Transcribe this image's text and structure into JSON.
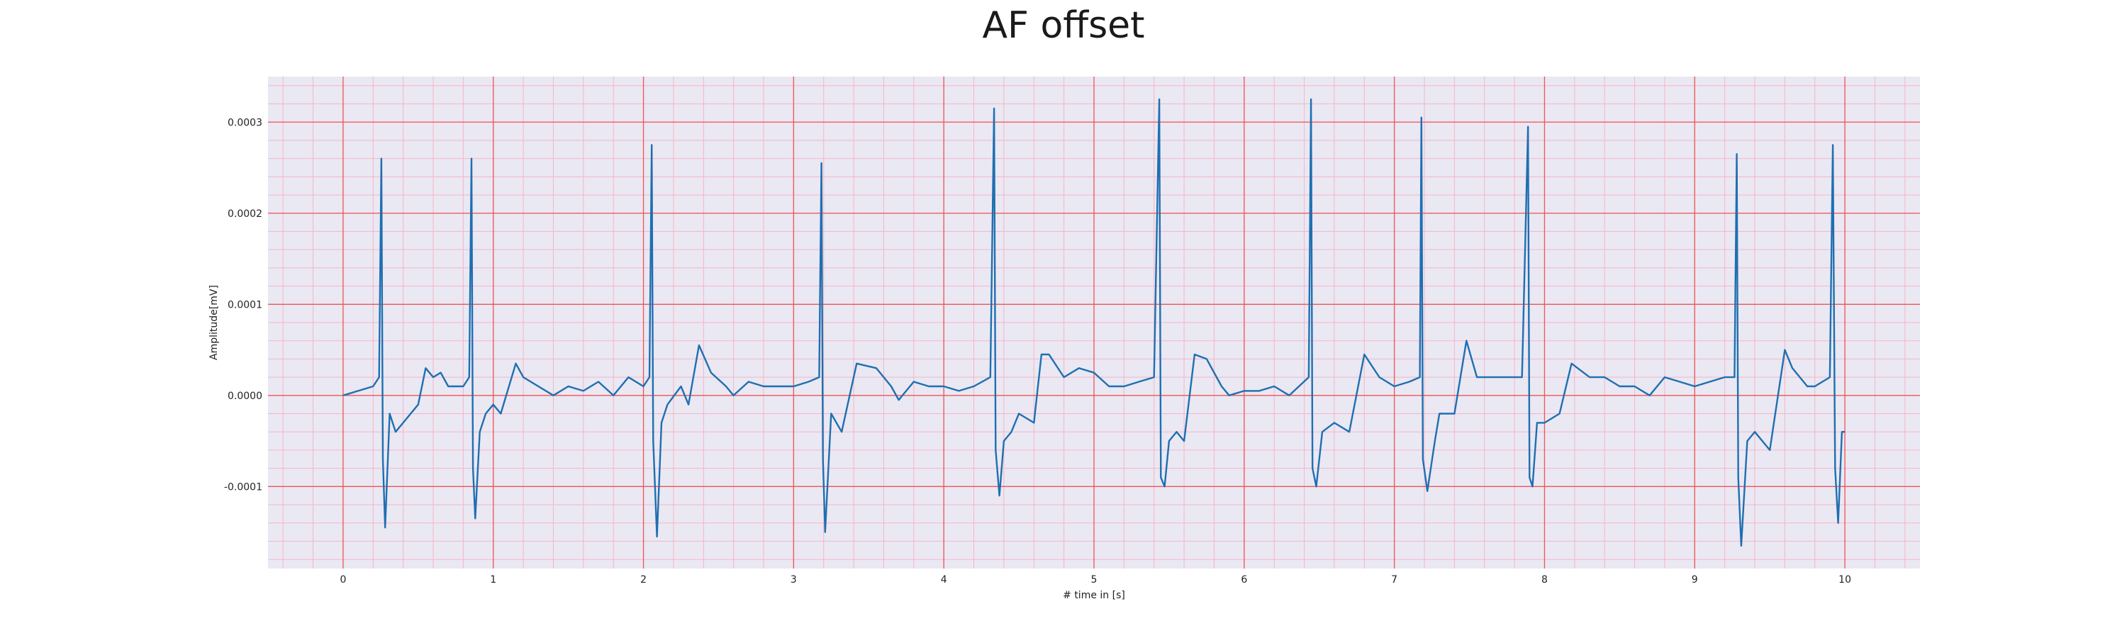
{
  "chart_data": {
    "type": "line",
    "title": "AF offset",
    "xlabel": "# time in [s]",
    "ylabel": "Amplitude[mV]",
    "xlim": [
      -0.5,
      10.5
    ],
    "ylim": [
      -0.00019,
      0.00035
    ],
    "x_ticks": [
      0,
      1,
      2,
      3,
      4,
      5,
      6,
      7,
      8,
      9,
      10
    ],
    "x_tick_labels": [
      "0",
      "1",
      "2",
      "3",
      "4",
      "5",
      "6",
      "7",
      "8",
      "9",
      "10"
    ],
    "y_ticks": [
      -0.0001,
      0.0,
      0.0001,
      0.0002,
      0.0003
    ],
    "y_tick_labels": [
      "-0.0001",
      "0.0000",
      "0.0001",
      "0.0002",
      "0.0003"
    ],
    "grid": true,
    "colors": {
      "line": "#1f6fb0",
      "plot_background": "#eae8f3",
      "major_grid": "#ee5555",
      "minor_grid": "#f4b6c6"
    },
    "series": [
      {
        "values": [
          [
            0,
            0
          ],
          [
            0.1,
            5e-06
          ],
          [
            0.2,
            1e-05
          ],
          [
            0.24,
            2e-05
          ],
          [
            0.255,
            0.00026
          ],
          [
            0.265,
            -7e-05
          ],
          [
            0.28,
            -0.000145
          ],
          [
            0.31,
            -2e-05
          ],
          [
            0.35,
            -4e-05
          ],
          [
            0.4,
            -3e-05
          ],
          [
            0.5,
            -1e-05
          ],
          [
            0.55,
            3e-05
          ],
          [
            0.6,
            2e-05
          ],
          [
            0.65,
            2.5e-05
          ],
          [
            0.7,
            1e-05
          ],
          [
            0.8,
            1e-05
          ],
          [
            0.84,
            2e-05
          ],
          [
            0.855,
            0.00026
          ],
          [
            0.865,
            -8e-05
          ],
          [
            0.88,
            -0.000135
          ],
          [
            0.91,
            -4e-05
          ],
          [
            0.95,
            -2e-05
          ],
          [
            1.0,
            -1e-05
          ],
          [
            1.05,
            -2e-05
          ],
          [
            1.15,
            3.5e-05
          ],
          [
            1.2,
            2e-05
          ],
          [
            1.3,
            1e-05
          ],
          [
            1.4,
            0.0
          ],
          [
            1.5,
            1e-05
          ],
          [
            1.6,
            5e-06
          ],
          [
            1.7,
            1.5e-05
          ],
          [
            1.8,
            0.0
          ],
          [
            1.9,
            2e-05
          ],
          [
            2.0,
            1e-05
          ],
          [
            2.04,
            2e-05
          ],
          [
            2.055,
            0.000275
          ],
          [
            2.065,
            -5e-05
          ],
          [
            2.09,
            -0.000155
          ],
          [
            2.12,
            -3e-05
          ],
          [
            2.16,
            -1e-05
          ],
          [
            2.25,
            1e-05
          ],
          [
            2.3,
            -1e-05
          ],
          [
            2.37,
            5.5e-05
          ],
          [
            2.45,
            2.5e-05
          ],
          [
            2.55,
            1e-05
          ],
          [
            2.6,
            0.0
          ],
          [
            2.7,
            1.5e-05
          ],
          [
            2.8,
            1e-05
          ],
          [
            2.9,
            1e-05
          ],
          [
            3.0,
            1e-05
          ],
          [
            3.1,
            1.5e-05
          ],
          [
            3.17,
            2e-05
          ],
          [
            3.185,
            0.000255
          ],
          [
            3.195,
            -7e-05
          ],
          [
            3.21,
            -0.00015
          ],
          [
            3.25,
            -2e-05
          ],
          [
            3.32,
            -4e-05
          ],
          [
            3.42,
            3.5e-05
          ],
          [
            3.55,
            3e-05
          ],
          [
            3.65,
            1e-05
          ],
          [
            3.7,
            -5e-06
          ],
          [
            3.8,
            1.5e-05
          ],
          [
            3.9,
            1e-05
          ],
          [
            4.0,
            1e-05
          ],
          [
            4.1,
            5e-06
          ],
          [
            4.2,
            1e-05
          ],
          [
            4.31,
            2e-05
          ],
          [
            4.335,
            0.000315
          ],
          [
            4.345,
            -6e-05
          ],
          [
            4.37,
            -0.00011
          ],
          [
            4.4,
            -5e-05
          ],
          [
            4.45,
            -4e-05
          ],
          [
            4.5,
            -2e-05
          ],
          [
            4.6,
            -3e-05
          ],
          [
            4.65,
            4.5e-05
          ],
          [
            4.7,
            4.5e-05
          ],
          [
            4.8,
            2e-05
          ],
          [
            4.9,
            3e-05
          ],
          [
            5.0,
            2.5e-05
          ],
          [
            5.1,
            1e-05
          ],
          [
            5.2,
            1e-05
          ],
          [
            5.3,
            1.5e-05
          ],
          [
            5.4,
            2e-05
          ],
          [
            5.435,
            0.000325
          ],
          [
            5.445,
            -9e-05
          ],
          [
            5.47,
            -0.0001
          ],
          [
            5.5,
            -5e-05
          ],
          [
            5.55,
            -4e-05
          ],
          [
            5.6,
            -5e-05
          ],
          [
            5.67,
            4.5e-05
          ],
          [
            5.75,
            4e-05
          ],
          [
            5.85,
            1e-05
          ],
          [
            5.9,
            0.0
          ],
          [
            6.0,
            5e-06
          ],
          [
            6.1,
            5e-06
          ],
          [
            6.2,
            1e-05
          ],
          [
            6.3,
            0.0
          ],
          [
            6.43,
            2e-05
          ],
          [
            6.445,
            0.000325
          ],
          [
            6.455,
            -8e-05
          ],
          [
            6.48,
            -0.0001
          ],
          [
            6.52,
            -4e-05
          ],
          [
            6.6,
            -3e-05
          ],
          [
            6.7,
            -4e-05
          ],
          [
            6.8,
            4.5e-05
          ],
          [
            6.9,
            2e-05
          ],
          [
            7.0,
            1e-05
          ],
          [
            7.1,
            1.5e-05
          ],
          [
            7.17,
            2e-05
          ],
          [
            7.18,
            0.000305
          ],
          [
            7.19,
            -7e-05
          ],
          [
            7.22,
            -0.000105
          ],
          [
            7.27,
            -5e-05
          ],
          [
            7.3,
            -2e-05
          ],
          [
            7.4,
            -2e-05
          ],
          [
            7.48,
            6e-05
          ],
          [
            7.55,
            2e-05
          ],
          [
            7.65,
            2e-05
          ],
          [
            7.75,
            2e-05
          ],
          [
            7.85,
            2e-05
          ],
          [
            7.89,
            0.000295
          ],
          [
            7.9,
            -9e-05
          ],
          [
            7.92,
            -0.0001
          ],
          [
            7.95,
            -3e-05
          ],
          [
            8.0,
            -3e-05
          ],
          [
            8.1,
            -2e-05
          ],
          [
            8.18,
            3.5e-05
          ],
          [
            8.3,
            2e-05
          ],
          [
            8.4,
            2e-05
          ],
          [
            8.5,
            1e-05
          ],
          [
            8.6,
            1e-05
          ],
          [
            8.7,
            0.0
          ],
          [
            8.8,
            2e-05
          ],
          [
            8.9,
            1.5e-05
          ],
          [
            9.0,
            1e-05
          ],
          [
            9.1,
            1.5e-05
          ],
          [
            9.2,
            2e-05
          ],
          [
            9.265,
            2e-05
          ],
          [
            9.28,
            0.000265
          ],
          [
            9.29,
            -9e-05
          ],
          [
            9.31,
            -0.000165
          ],
          [
            9.35,
            -5e-05
          ],
          [
            9.4,
            -4e-05
          ],
          [
            9.5,
            -6e-05
          ],
          [
            9.6,
            5e-05
          ],
          [
            9.65,
            3e-05
          ],
          [
            9.75,
            1e-05
          ],
          [
            9.8,
            1e-05
          ],
          [
            9.9,
            2e-05
          ],
          [
            9.92,
            0.000275
          ],
          [
            9.935,
            -8e-05
          ],
          [
            9.955,
            -0.00014
          ],
          [
            9.98,
            -4e-05
          ],
          [
            10.0,
            -4e-05
          ]
        ]
      }
    ]
  }
}
